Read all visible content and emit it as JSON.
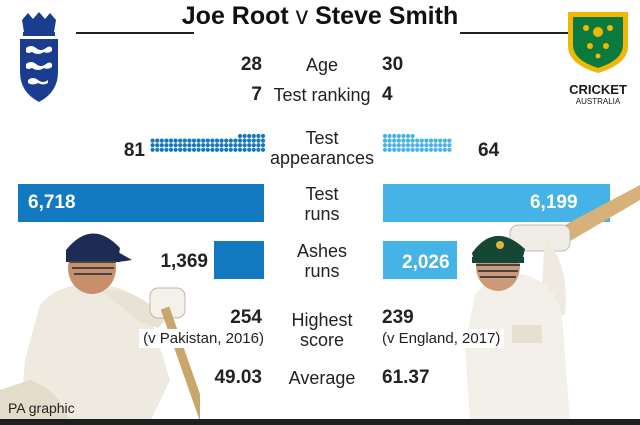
{
  "title": {
    "left_player": "Joe Root",
    "vs": "v",
    "right_player": "Steve Smith"
  },
  "colors": {
    "left": "#1279c0",
    "right": "#45b3e5",
    "dark": "#1f1f1f"
  },
  "logos": {
    "left": {
      "icon": "england-three-lions-crest-icon"
    },
    "right": {
      "icon": "cricket-australia-logo-icon",
      "line1": "CRICKET",
      "line2": "AUSTRALIA"
    }
  },
  "stats": {
    "age": {
      "label": "Age",
      "left": "28",
      "right": "30"
    },
    "ranking": {
      "label": "Test ranking",
      "left": "7",
      "right": "4"
    },
    "appearances": {
      "label_line1": "Test",
      "label_line2": "appearances",
      "left": "81",
      "right": "64"
    },
    "runs": {
      "label_line1": "Test",
      "label_line2": "runs",
      "left": "6,718",
      "right": "6,199"
    },
    "ashes": {
      "label_line1": "Ashes",
      "label_line2": "runs",
      "left": "1,369",
      "right": "2,026"
    },
    "highest": {
      "label_line1": "Highest",
      "label_line2": "score",
      "left": "254",
      "left_note": "(v Pakistan, 2016)",
      "right": "239",
      "right_note": "(v England, 2017)"
    },
    "average": {
      "label": "Average",
      "left": "49.03",
      "right": "61.37"
    }
  },
  "chart_data": {
    "type": "bar",
    "categories": [
      "Test appearances",
      "Test runs",
      "Ashes runs"
    ],
    "series": [
      {
        "name": "Joe Root",
        "values": [
          81,
          6718,
          1369
        ]
      },
      {
        "name": "Steve Smith",
        "values": [
          64,
          6199,
          2026
        ]
      }
    ],
    "title": "Joe Root v Steve Smith"
  },
  "credit": "PA graphic"
}
